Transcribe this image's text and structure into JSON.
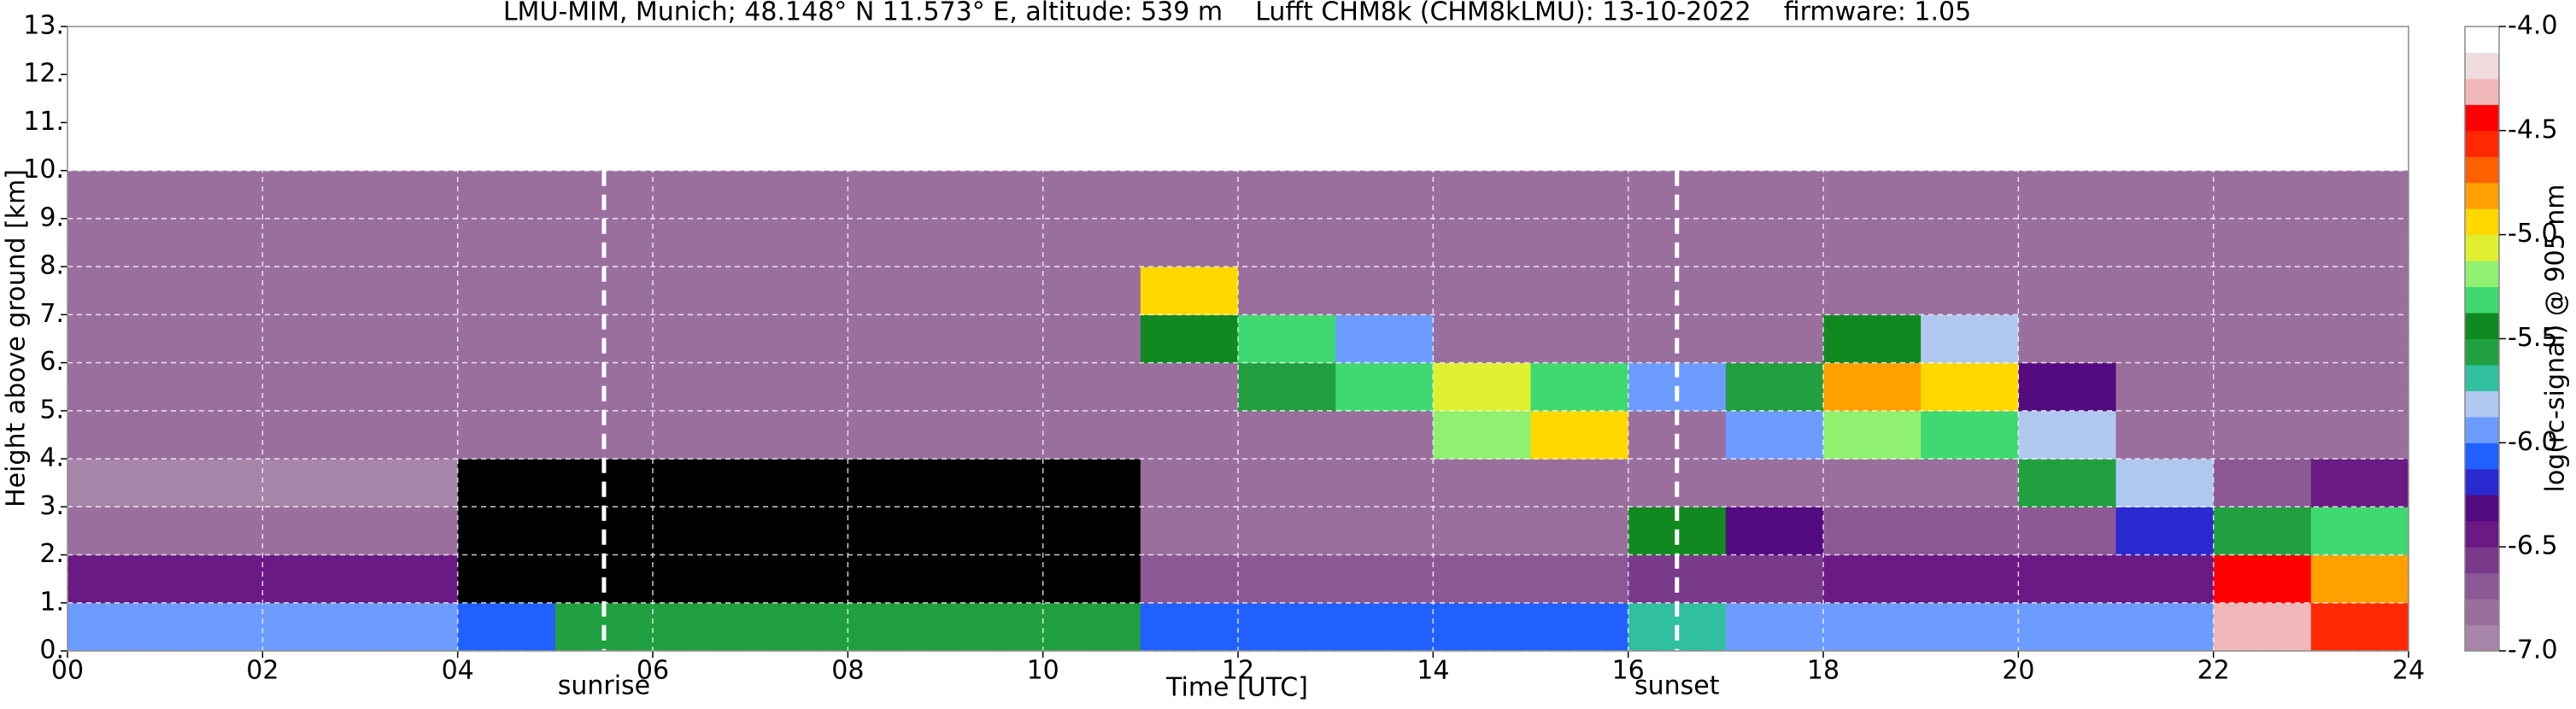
{
  "chart_data": {
    "type": "heatmap",
    "title": "LMU-MIM, Munich; 48.148° N 11.573° E, altitude: 539 m    Lufft CHM8k (CHM8kLMU): 13-10-2022    firmware: 1.05",
    "xlabel": "Time [UTC]",
    "ylabel": "Height above ground [km]",
    "xlim": [
      0,
      24
    ],
    "ylim": [
      0,
      13
    ],
    "xticks": [
      {
        "value": 0,
        "label": "00"
      },
      {
        "value": 2,
        "label": "02"
      },
      {
        "value": 4,
        "label": "04"
      },
      {
        "value": 6,
        "label": "06"
      },
      {
        "value": 8,
        "label": "08"
      },
      10,
      12,
      14,
      16,
      18,
      20,
      22,
      24
    ],
    "yticks": [
      {
        "value": 0,
        "label": "0."
      },
      {
        "value": 1,
        "label": "1."
      },
      {
        "value": 2,
        "label": "2."
      },
      {
        "value": 3,
        "label": "3."
      },
      {
        "value": 4,
        "label": "4."
      },
      {
        "value": 5,
        "label": "5."
      },
      {
        "value": 6,
        "label": "6."
      },
      {
        "value": 7,
        "label": "7."
      },
      {
        "value": 8,
        "label": "8."
      },
      {
        "value": 9,
        "label": "9."
      },
      {
        "value": 10,
        "label": "10."
      },
      {
        "value": 11,
        "label": "11."
      },
      {
        "value": 12,
        "label": "12."
      },
      {
        "value": 13,
        "label": "13."
      }
    ],
    "grid": true,
    "xbins": [
      0,
      1,
      2,
      3,
      4,
      5,
      6,
      7,
      8,
      9,
      10,
      11,
      12,
      13,
      14,
      15,
      16,
      17,
      18,
      19,
      20,
      21,
      22,
      23,
      24
    ],
    "ybins": [
      0,
      1,
      2,
      3,
      4,
      5,
      6,
      7,
      8,
      9,
      10
    ],
    "z": [
      [
        -6.0,
        -6.0,
        -6.0,
        -6.0,
        -6.1,
        -5.6,
        -5.6,
        -5.6,
        -5.6,
        -5.6,
        -5.6,
        -6.1,
        -6.1,
        -6.1,
        -6.1,
        -6.1,
        -5.7,
        -5.9,
        -5.9,
        -5.9,
        -5.9,
        -6.0,
        -4.3,
        -4.6
      ],
      [
        -6.4,
        -6.4,
        -6.4,
        -6.4,
        -7.2,
        -7.2,
        -7.2,
        -7.2,
        -7.2,
        -7.2,
        -7.2,
        -6.7,
        -6.7,
        -6.7,
        -6.7,
        -6.7,
        -6.6,
        -6.6,
        -6.5,
        -6.5,
        -6.5,
        -6.5,
        -4.4,
        -4.8
      ],
      [
        -6.8,
        -6.8,
        -6.8,
        -6.8,
        -7.2,
        -7.2,
        -7.2,
        -7.2,
        -7.2,
        -7.2,
        -7.2,
        -6.8,
        -6.8,
        -6.8,
        -6.8,
        -6.8,
        -5.5,
        -6.3,
        -6.7,
        -6.7,
        -6.7,
        -6.2,
        -5.6,
        -5.3
      ],
      [
        -6.9,
        -6.9,
        -6.9,
        -6.9,
        -7.1,
        -7.1,
        -7.1,
        -7.1,
        -7.1,
        -7.1,
        -7.1,
        -6.8,
        -6.8,
        -6.8,
        -6.8,
        -6.8,
        -6.8,
        -6.8,
        -6.8,
        -6.8,
        -5.6,
        -5.8,
        -6.7,
        -6.5
      ],
      [
        -6.8,
        -6.8,
        -6.8,
        -6.8,
        -6.8,
        -6.8,
        -6.8,
        -6.8,
        -6.8,
        -6.8,
        -6.8,
        -6.8,
        -6.8,
        -6.8,
        -5.2,
        -5.0,
        -6.8,
        -5.9,
        -5.2,
        -5.3,
        -5.8,
        -6.8,
        -6.8,
        -6.8
      ],
      [
        -6.8,
        -6.8,
        -6.8,
        -6.8,
        -6.8,
        -6.8,
        -6.8,
        -6.8,
        -6.8,
        -6.8,
        -6.8,
        -6.8,
        -5.6,
        -5.3,
        -5.1,
        -5.3,
        -6.0,
        -5.6,
        -4.8,
        -4.9,
        -6.3,
        -6.8,
        -6.8,
        -6.8
      ],
      [
        -6.8,
        -6.8,
        -6.8,
        -6.8,
        -6.8,
        -6.8,
        -6.8,
        -6.8,
        -6.8,
        -6.8,
        -6.8,
        -5.4,
        -5.3,
        -6.0,
        -6.8,
        -6.8,
        -6.8,
        -6.8,
        -5.5,
        -5.8,
        -6.8,
        -6.8,
        -6.8,
        -6.8
      ],
      [
        -6.8,
        -6.8,
        -6.8,
        -6.8,
        -6.8,
        -6.8,
        -6.8,
        -6.8,
        -6.8,
        -6.8,
        -6.8,
        -5.0,
        -6.8,
        -6.8,
        -6.8,
        -6.8,
        -6.8,
        -6.8,
        -6.8,
        -6.8,
        -6.8,
        -6.8,
        -6.8,
        -6.8
      ],
      [
        -6.8,
        -6.8,
        -6.8,
        -6.8,
        -6.8,
        -6.8,
        -6.8,
        -6.8,
        -6.8,
        -6.8,
        -6.8,
        -6.8,
        -6.8,
        -6.8,
        -6.8,
        -6.8,
        -6.8,
        -6.8,
        -6.8,
        -6.8,
        -6.8,
        -6.8,
        -6.8,
        -6.8
      ],
      [
        -6.8,
        -6.8,
        -6.8,
        -6.8,
        -6.8,
        -6.8,
        -6.8,
        -6.8,
        -6.8,
        -6.8,
        -6.8,
        -6.8,
        -6.8,
        -6.8,
        -6.8,
        -6.8,
        -6.8,
        -6.8,
        -6.8,
        -6.8,
        -6.8,
        -6.8,
        -6.8,
        -6.8
      ]
    ],
    "under_color": "#000000",
    "annotations": [
      {
        "text": "sunrise",
        "x": 5.5
      },
      {
        "text": "sunset",
        "x": 16.5
      }
    ],
    "colorbar": {
      "label": "log(rc-signal) @ 905 nm",
      "lim": [
        -7,
        -4
      ],
      "ticks": [
        {
          "value": -4,
          "label": "-4.0"
        },
        -4.5,
        {
          "value": -5,
          "label": "-5.0"
        },
        -5.5,
        {
          "value": -6,
          "label": "-6.0"
        },
        -6.5,
        {
          "value": -7,
          "label": "-7.0"
        }
      ],
      "colors": [
        "#a785a8",
        "#9a6f9e",
        "#8c5896",
        "#7a3a8c",
        "#6a1a84",
        "#540a80",
        "#2a2ad0",
        "#2060ff",
        "#6c9cff",
        "#b0c8f0",
        "#30c0a0",
        "#20a040",
        "#108a20",
        "#40d870",
        "#90f070",
        "#e0f030",
        "#ffd800",
        "#ffa000",
        "#ff6000",
        "#ff2800",
        "#ff0000",
        "#f0b8b8",
        "#f0dcdc",
        "#ffffff"
      ]
    }
  }
}
